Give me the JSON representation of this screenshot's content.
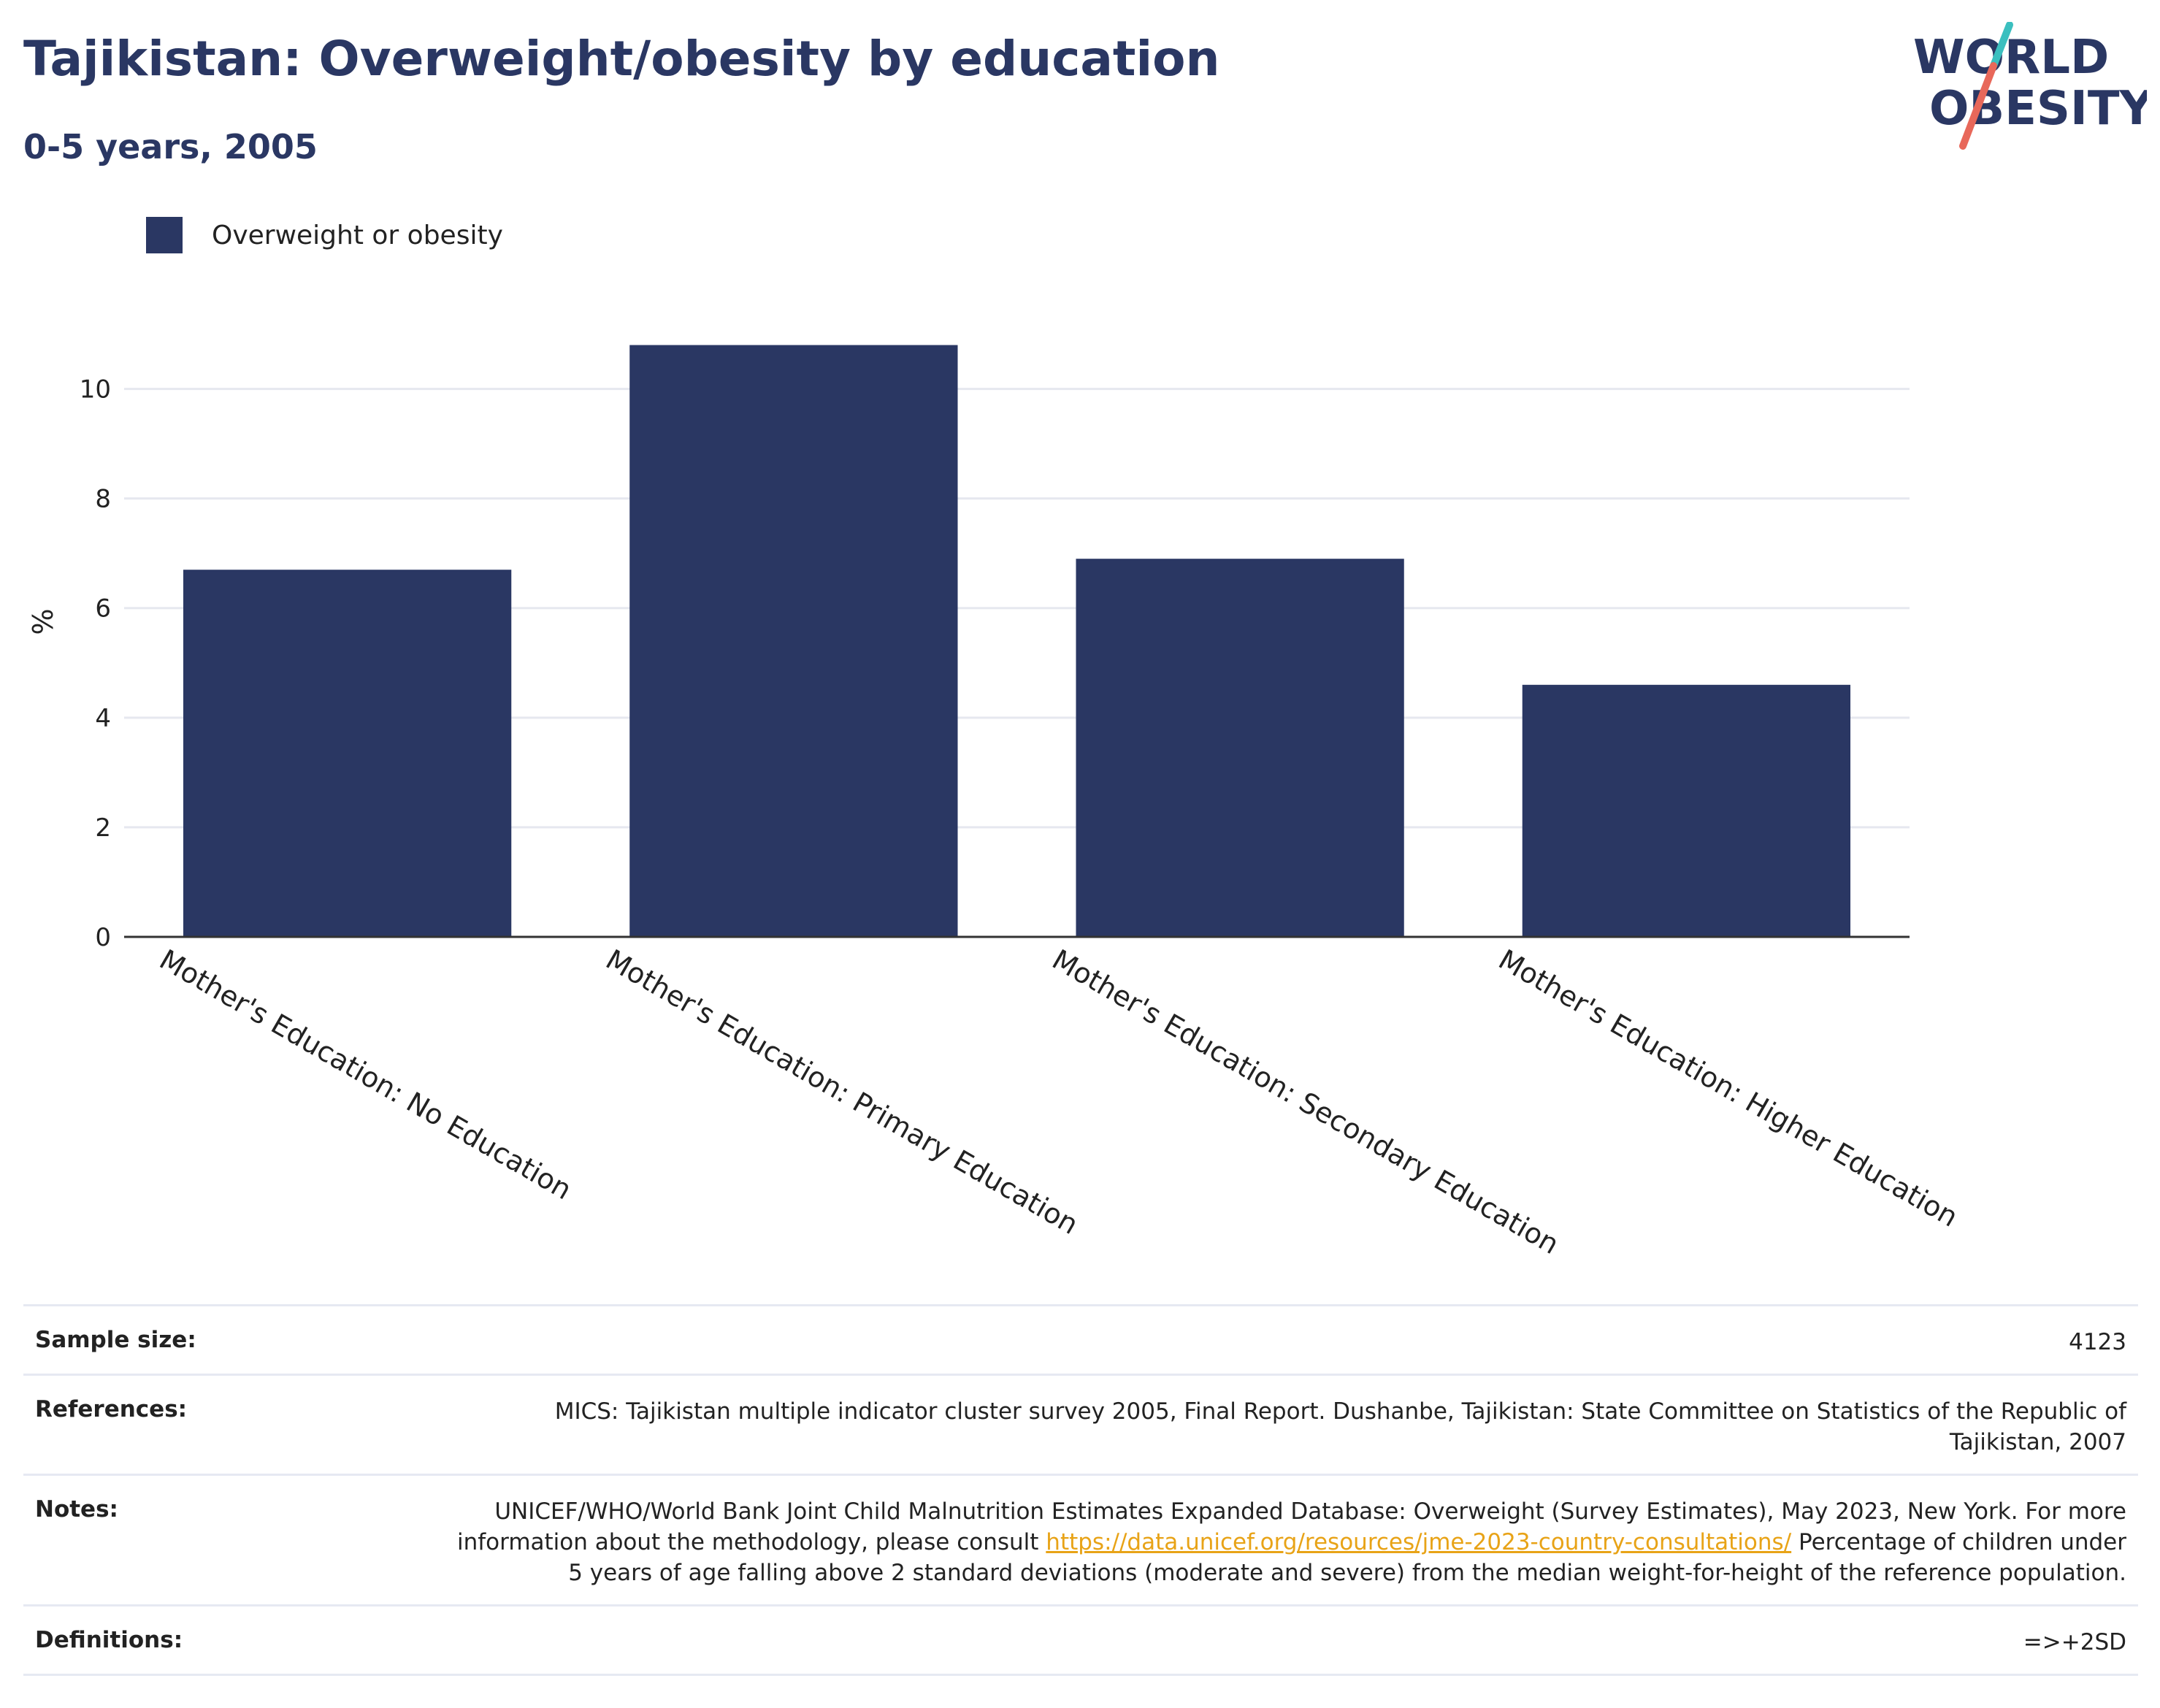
{
  "title": "Tajikistan: Overweight/obesity by education",
  "subtitle": "0-5 years, 2005",
  "logo": {
    "line1": "WORLD",
    "line2": "OBESITY",
    "colors": {
      "text": "#2a3763",
      "slash_teal": "#3bbfbf",
      "slash_red": "#e8685a"
    }
  },
  "legend": {
    "label": "Overweight or obesity",
    "color": "#2a3763"
  },
  "chart_data": {
    "type": "bar",
    "categories": [
      "Mother's Education: No Education",
      "Mother's Education: Primary Education",
      "Mother's Education: Secondary Education",
      "Mother's Education: Higher Education"
    ],
    "series": [
      {
        "name": "Overweight or obesity",
        "values": [
          6.7,
          10.8,
          6.9,
          4.6
        ],
        "color": "#2a3763"
      }
    ],
    "ylabel": "%",
    "ylim": [
      0,
      11.5
    ],
    "yticks": [
      0,
      2,
      4,
      6,
      8,
      10
    ],
    "grid": true,
    "legend_position": "top-left"
  },
  "info": {
    "sample_size": {
      "label": "Sample size:",
      "value": "4123"
    },
    "references": {
      "label": "References:",
      "value": "MICS: Tajikistan multiple indicator cluster survey 2005, Final Report. Dushanbe, Tajikistan: State Committee on Statistics of the Republic of Tajikistan, 2007"
    },
    "notes": {
      "label": "Notes:",
      "text_before": "UNICEF/WHO/World Bank Joint Child Malnutrition Estimates Expanded Database: Overweight (Survey Estimates), May 2023, New York. For more information about the methodology, please consult ",
      "link": "https://data.unicef.org/resources/jme-2023-country-consultations/",
      "text_after": " Percentage of children under 5 years of age falling above 2 standard deviations (moderate and severe) from the median weight-for-height of the reference population."
    },
    "definitions": {
      "label": "Definitions:",
      "value": "=>+2SD"
    }
  }
}
